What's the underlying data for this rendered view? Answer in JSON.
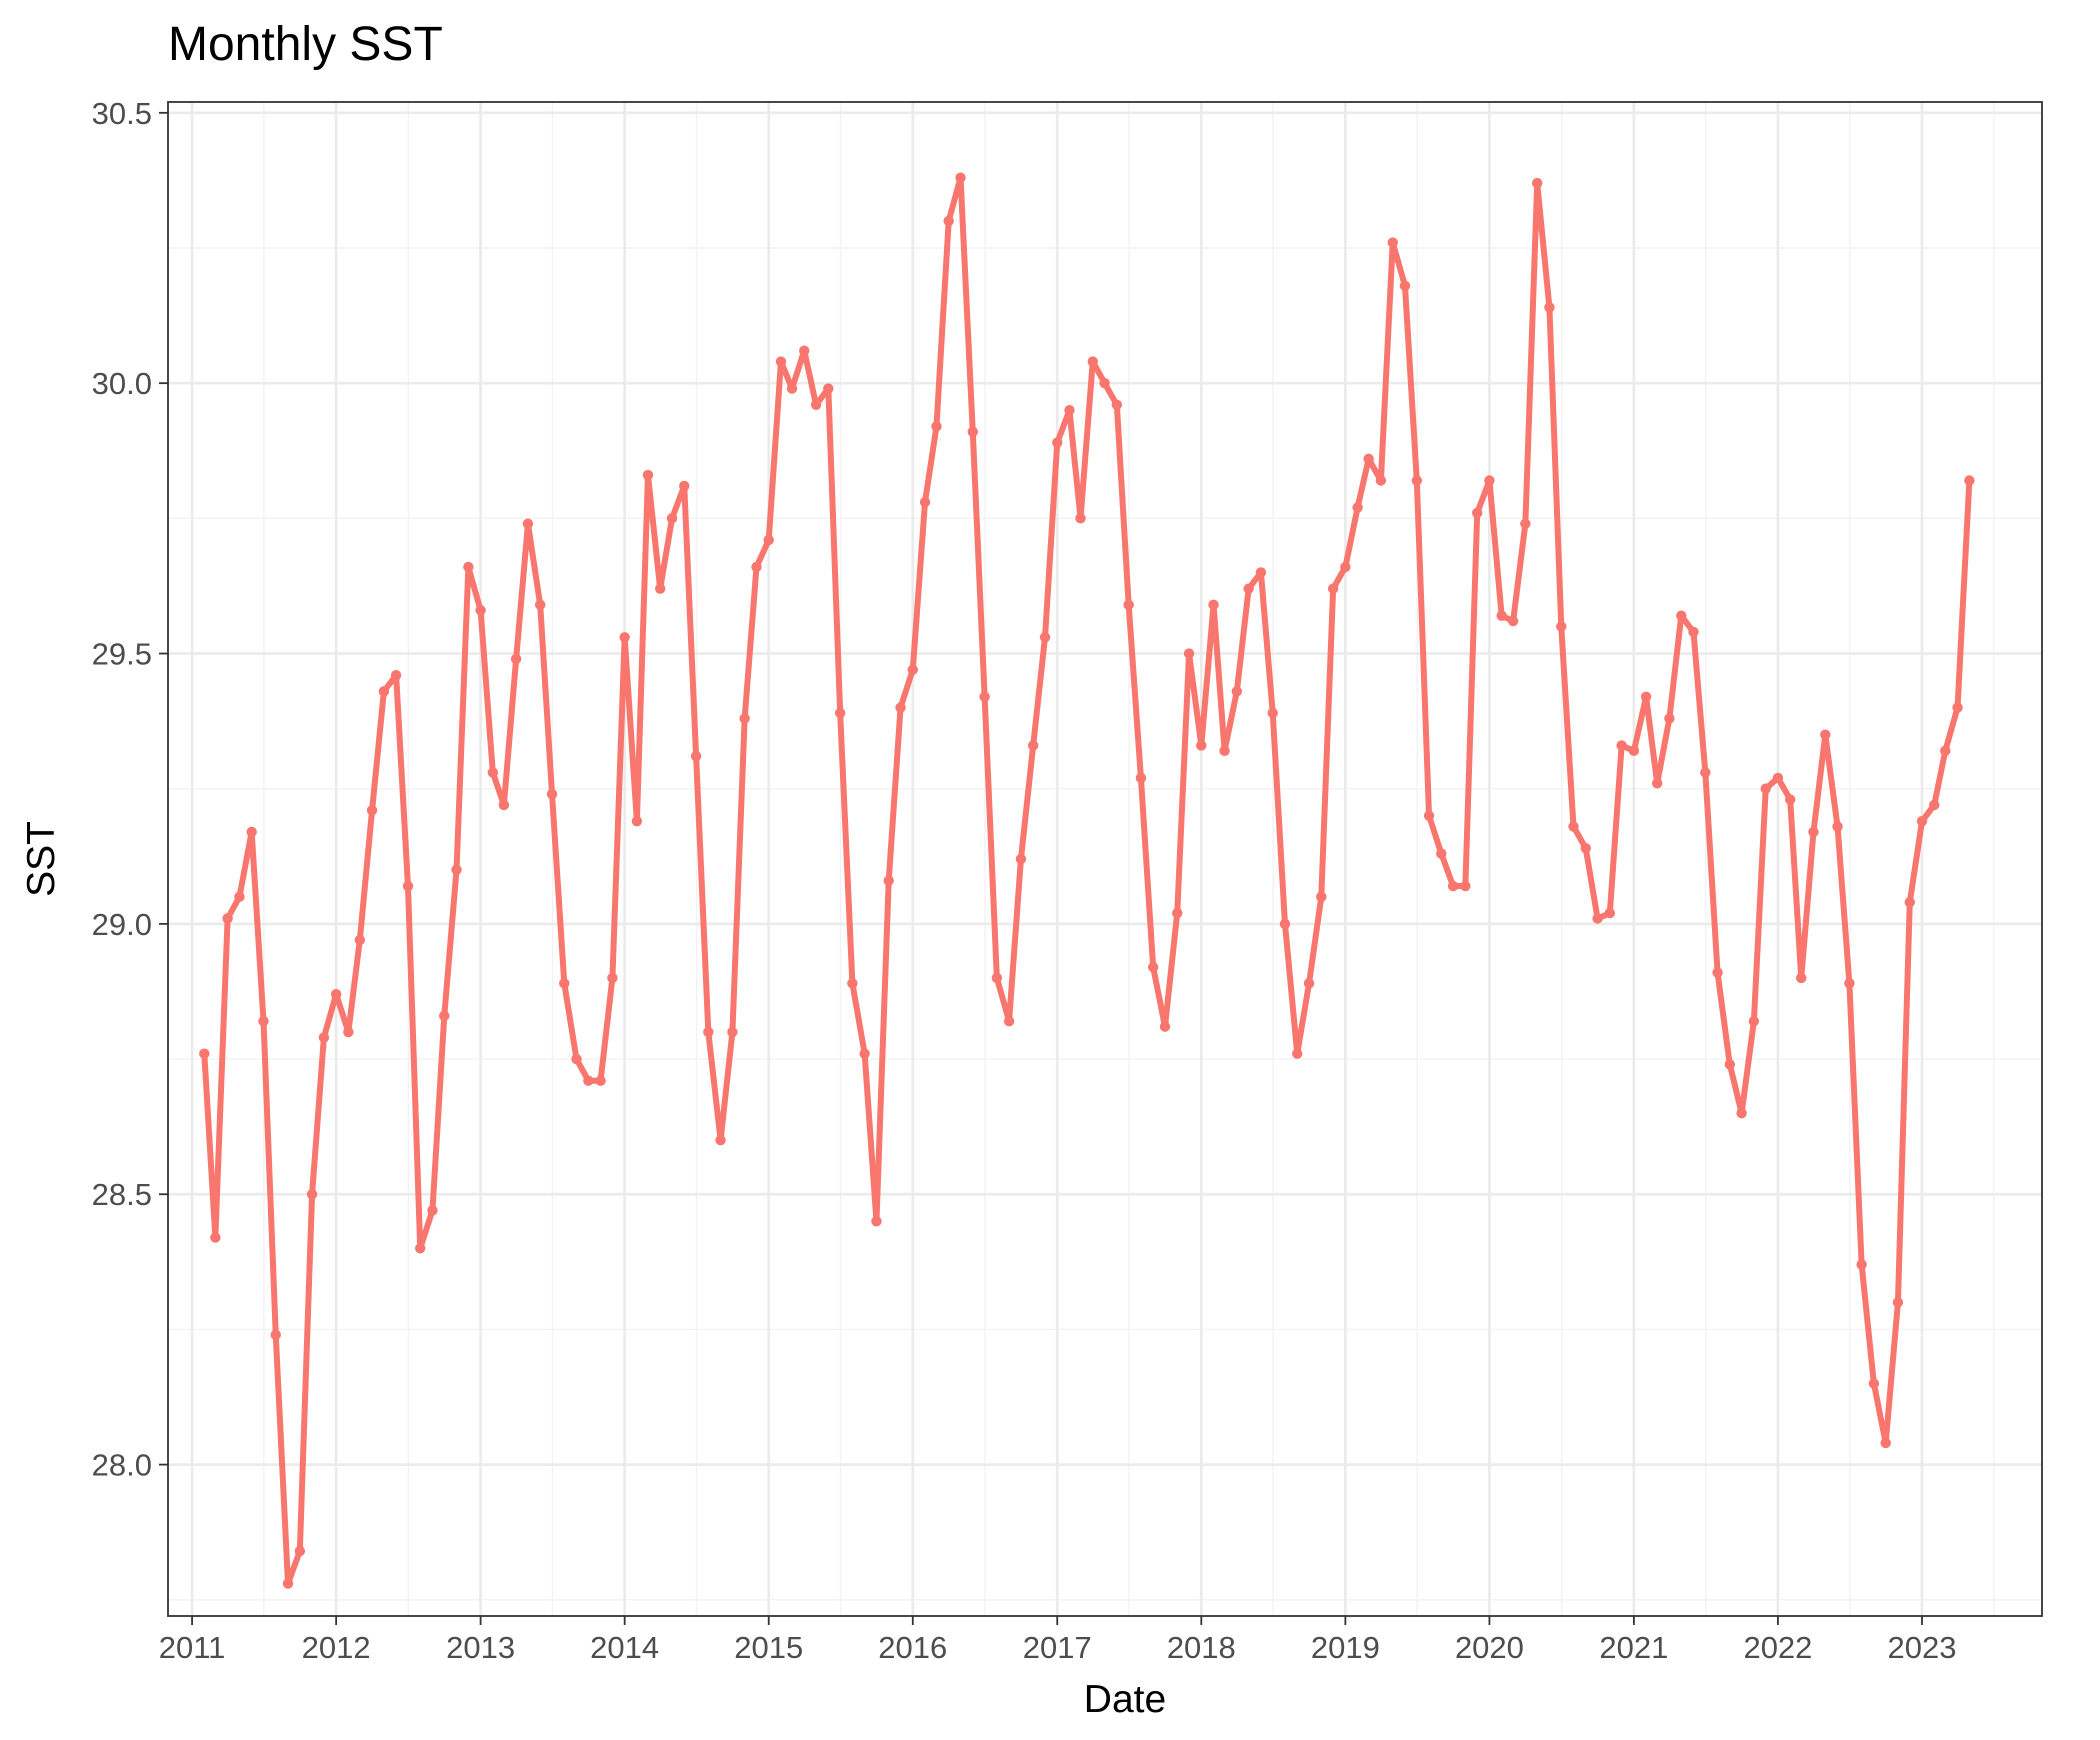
{
  "chart_data": {
    "type": "line",
    "title": "Monthly SST",
    "xlabel": "Date",
    "ylabel": "SST",
    "x_tick_labels": [
      "2011",
      "2012",
      "2013",
      "2014",
      "2015",
      "2016",
      "2017",
      "2018",
      "2019",
      "2020",
      "2021",
      "2022",
      "2023"
    ],
    "y_tick_labels": [
      "28.0",
      "28.5",
      "29.0",
      "29.5",
      "30.0",
      "30.5"
    ],
    "y_ticks": [
      28.0,
      28.5,
      29.0,
      29.5,
      30.0,
      30.5
    ],
    "xlim": [
      "2010-11-01",
      "2023-11-01"
    ],
    "ylim": [
      27.72,
      30.52
    ],
    "grid": true,
    "legend": "none",
    "line_color": "#F8766D",
    "series": [
      {
        "x": [
          "2011-02-01",
          "2011-03-01",
          "2011-04-01",
          "2011-05-01",
          "2011-06-01",
          "2011-07-01",
          "2011-08-01",
          "2011-09-01",
          "2011-10-01",
          "2011-11-01",
          "2011-12-01",
          "2012-01-01",
          "2012-02-01",
          "2012-03-01",
          "2012-04-01",
          "2012-05-01",
          "2012-06-01",
          "2012-07-01",
          "2012-08-01",
          "2012-09-01",
          "2012-10-01",
          "2012-11-01",
          "2012-12-01",
          "2013-01-01",
          "2013-02-01",
          "2013-03-01",
          "2013-04-01",
          "2013-05-01",
          "2013-06-01",
          "2013-07-01",
          "2013-08-01",
          "2013-09-01",
          "2013-10-01",
          "2013-11-01",
          "2013-12-01",
          "2014-01-01",
          "2014-02-01",
          "2014-03-01",
          "2014-04-01",
          "2014-05-01",
          "2014-06-01",
          "2014-07-01",
          "2014-08-01",
          "2014-09-01",
          "2014-10-01",
          "2014-11-01",
          "2014-12-01",
          "2015-01-01",
          "2015-02-01",
          "2015-03-01",
          "2015-04-01",
          "2015-05-01",
          "2015-06-01",
          "2015-07-01",
          "2015-08-01",
          "2015-09-01",
          "2015-10-01",
          "2015-11-01",
          "2015-12-01",
          "2016-01-01",
          "2016-02-01",
          "2016-03-01",
          "2016-04-01",
          "2016-05-01",
          "2016-06-01",
          "2016-07-01",
          "2016-08-01",
          "2016-09-01",
          "2016-10-01",
          "2016-11-01",
          "2016-12-01",
          "2017-01-01",
          "2017-02-01",
          "2017-03-01",
          "2017-04-01",
          "2017-05-01",
          "2017-06-01",
          "2017-07-01",
          "2017-08-01",
          "2017-09-01",
          "2017-10-01",
          "2017-11-01",
          "2017-12-01",
          "2018-01-01",
          "2018-02-01",
          "2018-03-01",
          "2018-04-01",
          "2018-05-01",
          "2018-06-01",
          "2018-07-01",
          "2018-08-01",
          "2018-09-01",
          "2018-10-01",
          "2018-11-01",
          "2018-12-01",
          "2019-01-01",
          "2019-02-01",
          "2019-03-01",
          "2019-04-01",
          "2019-05-01",
          "2019-06-01",
          "2019-07-01",
          "2019-08-01",
          "2019-09-01",
          "2019-10-01",
          "2019-11-01",
          "2019-12-01",
          "2020-01-01",
          "2020-02-01",
          "2020-03-01",
          "2020-04-01",
          "2020-05-01",
          "2020-06-01",
          "2020-07-01",
          "2020-08-01",
          "2020-09-01",
          "2020-10-01",
          "2020-11-01",
          "2020-12-01",
          "2021-01-01",
          "2021-02-01",
          "2021-03-01",
          "2021-04-01",
          "2021-05-01",
          "2021-06-01",
          "2021-07-01",
          "2021-08-01",
          "2021-09-01",
          "2021-10-01",
          "2021-11-01",
          "2021-12-01",
          "2022-01-01",
          "2022-02-01",
          "2022-03-01",
          "2022-04-01",
          "2022-05-01",
          "2022-06-01",
          "2022-07-01",
          "2022-08-01",
          "2022-09-01",
          "2022-10-01",
          "2022-11-01",
          "2022-12-01",
          "2023-01-01",
          "2023-02-01",
          "2023-03-01",
          "2023-04-01",
          "2023-05-01"
        ],
        "values": [
          28.76,
          28.42,
          29.01,
          29.05,
          29.17,
          28.82,
          28.24,
          27.78,
          27.84,
          28.5,
          28.79,
          28.87,
          28.8,
          28.97,
          29.21,
          29.43,
          29.46,
          29.07,
          28.4,
          28.47,
          28.83,
          29.1,
          29.66,
          29.58,
          29.28,
          29.22,
          29.49,
          29.74,
          29.59,
          29.24,
          28.89,
          28.75,
          28.71,
          28.71,
          28.9,
          29.53,
          29.19,
          29.83,
          29.62,
          29.75,
          29.81,
          29.31,
          28.8,
          28.6,
          28.8,
          29.38,
          29.66,
          29.71,
          30.04,
          29.99,
          30.06,
          29.96,
          29.99,
          29.39,
          28.89,
          28.76,
          28.45,
          29.08,
          29.4,
          29.47,
          29.78,
          29.92,
          30.3,
          30.38,
          29.91,
          29.42,
          28.9,
          28.82,
          29.12,
          29.33,
          29.53,
          29.89,
          29.95,
          29.75,
          30.04,
          30.0,
          29.96,
          29.59,
          29.27,
          28.92,
          28.81,
          29.02,
          29.5,
          29.33,
          29.59,
          29.32,
          29.43,
          29.62,
          29.65,
          29.39,
          29.0,
          28.76,
          28.89,
          29.05,
          29.62,
          29.66,
          29.77,
          29.86,
          29.82,
          30.26,
          30.18,
          29.82,
          29.2,
          29.13,
          29.07,
          29.07,
          29.76,
          29.82,
          29.57,
          29.56,
          29.74,
          30.37,
          30.14,
          29.55,
          29.18,
          29.14,
          29.01,
          29.02,
          29.33,
          29.32,
          29.42,
          29.26,
          29.38,
          29.57,
          29.54,
          29.28,
          28.91,
          28.74,
          28.65,
          28.82,
          29.25,
          29.27,
          29.23,
          28.9,
          29.17,
          29.35,
          29.18,
          28.89,
          28.37,
          28.15,
          28.04,
          28.3,
          29.04,
          29.19,
          29.22,
          29.32,
          29.4,
          29.82
        ]
      }
    ]
  }
}
